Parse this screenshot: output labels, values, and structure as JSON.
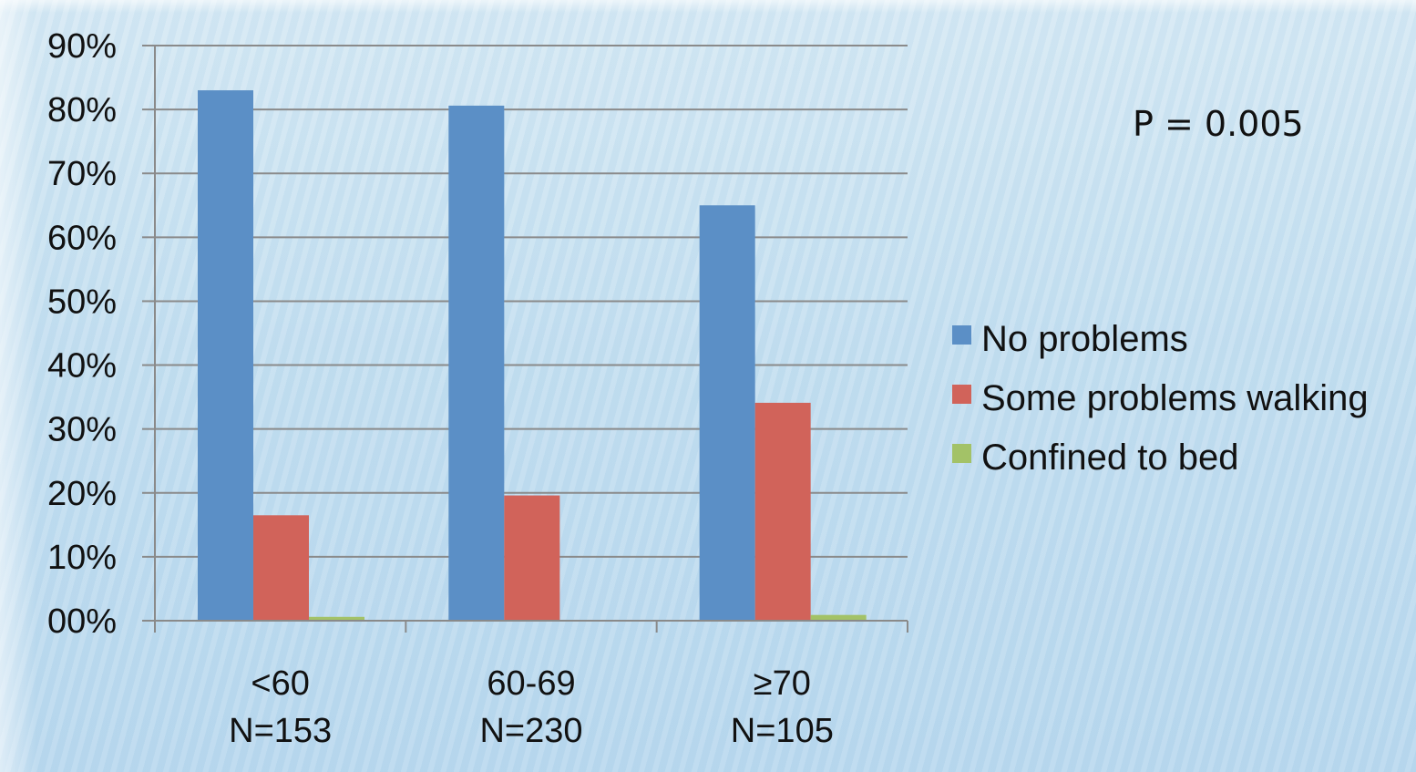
{
  "annotation": "P = 0.005",
  "chart_data": {
    "type": "bar",
    "categories": [
      [
        "<60",
        "N=153"
      ],
      [
        "60-69",
        "N=230"
      ],
      [
        "≥70",
        "N=105"
      ]
    ],
    "series": [
      {
        "name": "No problems",
        "color": "#5b8fc6",
        "values": [
          83.0,
          80.6,
          65.0
        ]
      },
      {
        "name": "Some problems walking",
        "color": "#d1635a",
        "values": [
          16.5,
          19.6,
          34.1
        ]
      },
      {
        "name": "Confined to bed",
        "color": "#a3c267",
        "values": [
          0.6,
          0.0,
          0.9
        ]
      }
    ],
    "yticks": [
      "00%",
      "10%",
      "20%",
      "30%",
      "40%",
      "50%",
      "60%",
      "70%",
      "80%",
      "90%"
    ],
    "ylim": [
      0,
      90
    ],
    "grid": true,
    "legend_position": "right",
    "title": "",
    "xlabel": "",
    "ylabel": ""
  }
}
